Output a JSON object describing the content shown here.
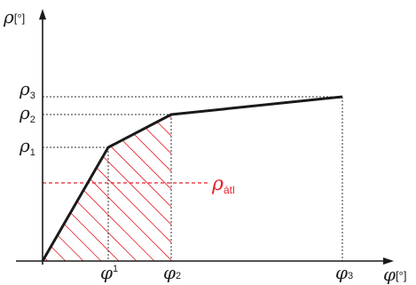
{
  "axes": {
    "y_label": "ρ",
    "y_unit": "[°]",
    "x_label": "φ",
    "x_unit": "[°]"
  },
  "y_ticks": [
    {
      "symbol": "ρ",
      "sub": "3"
    },
    {
      "symbol": "ρ",
      "sub": "2"
    },
    {
      "symbol": "ρ",
      "sub": "1"
    }
  ],
  "x_ticks": [
    {
      "symbol": "φ",
      "sub": "1"
    },
    {
      "symbol": "φ",
      "sub": "2"
    },
    {
      "symbol": "φ",
      "sub": "3"
    }
  ],
  "avg_line": {
    "symbol": "ρ",
    "sub": "átl"
  },
  "colors": {
    "curve": "#1a1a1a",
    "axes": "#1a1a1a",
    "guides": "#333333",
    "average": "#e8202a",
    "hatch": "#e8202a"
  }
}
